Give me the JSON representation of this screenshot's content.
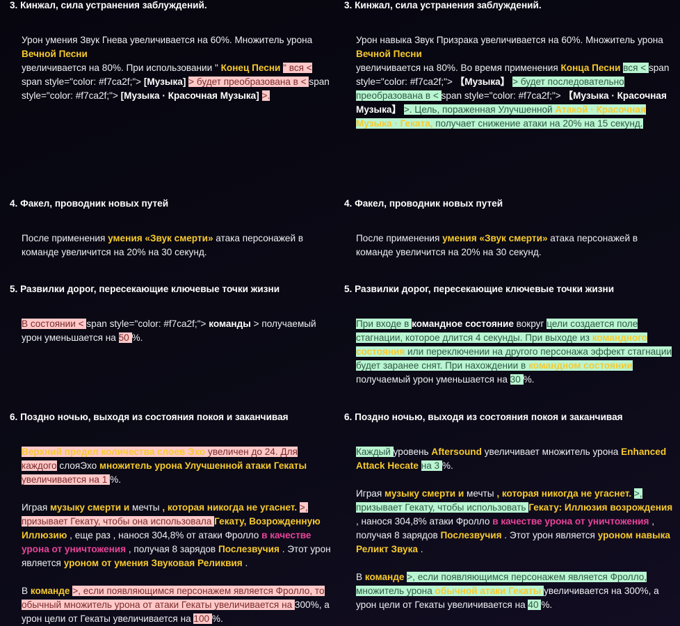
{
  "colors": {
    "accent_gold": "#f7ca2f",
    "accent_magenta": "#e8449a",
    "deleted_bg": "#ffc9c9",
    "inserted_bg": "#baf5d2",
    "background": "#0b0a15"
  },
  "columns": [
    {
      "side": "original",
      "sections": [
        {
          "title": "3. Кинжал, сила устранения заблуждений.",
          "paragraphs": [
            [
              {
                "c": "n",
                "t": "Урон умения Звук Гнева увеличивается на 60%. Множитель урона "
              },
              {
                "br": true
              },
              {
                "c": "g",
                "t": "Вечной Песни"
              },
              {
                "br": true
              },
              {
                "c": "n",
                "t": " увеличивается на 80%. При использовании \" "
              },
              {
                "c": "g",
                "t": "Конец Песни "
              },
              {
                "c": "del",
                "t": " \" вся < "
              },
              {
                "c": "n",
                "t": "span style=\"color: #f7ca2f;\"> "
              },
              {
                "c": "b",
                "t": "[Музыка] "
              },
              {
                "c": "del",
                "t": " > будет преобразована в < "
              },
              {
                "c": "n",
                "t": "span style=\"color: #f7ca2f;\"> "
              },
              {
                "c": "b",
                "t": "[Музыка · Красочная Музыка] "
              },
              {
                "c": "del",
                "t": " >."
              }
            ]
          ]
        },
        {
          "title": "4. Факел, проводник новых путей",
          "paragraphs": [
            [
              {
                "c": "n",
                "t": "После применения "
              },
              {
                "c": "g",
                "t": "умения «Звук смерти»"
              },
              {
                "c": "n",
                "t": " атака персонажей в команде увеличится на 20% на 30 секунд."
              }
            ]
          ]
        },
        {
          "title": "5. Развилки дорог, пересекающие ключевые точки жизни",
          "paragraphs": [
            [
              {
                "c": "del",
                "t": "В состоянии <  "
              },
              {
                "c": "n",
                "t": "span style=\"color: #f7ca2f;\"> "
              },
              {
                "c": "b",
                "t": "команды "
              },
              {
                "c": "n",
                "t": " > получаемый урон уменьшается на "
              },
              {
                "c": "del",
                "t": " 50 "
              },
              {
                "c": "n",
                "t": "%."
              }
            ]
          ]
        },
        {
          "title": "6. Поздно ночью, выходя из состояния покоя и заканчивая",
          "paragraphs": [
            [
              {
                "c": "delg",
                "t": "Верхний предел количества слоев Эхо"
              },
              {
                "c": "del",
                "t": " увеличен до 24. Для каждого"
              },
              {
                "c": "n",
                "t": " слояЭхо "
              },
              {
                "c": "g",
                "t": "множитель урона Улучшенной атаки Гекаты "
              },
              {
                "c": "del",
                "t": " увеличивается на 1 "
              },
              {
                "c": "n",
                "t": "%."
              }
            ],
            [
              {
                "c": "n",
                "t": "Играя "
              },
              {
                "c": "g",
                "t": "музыку смерти и"
              },
              {
                "c": "n",
                "t": " мечты "
              },
              {
                "c": "g",
                "t": ", которая никогда не угаснет. "
              },
              {
                "c": "del",
                "t": ">, призывает Гекату, чтобы она использовала "
              },
              {
                "c": "g",
                "t": " Гекату, Возрожденную Иллюзию"
              },
              {
                "c": "n",
                "t": " , еще раз , нанося 304,8% от атаки Фролло "
              },
              {
                "c": "m",
                "t": "в качестве урона от уничтожения"
              },
              {
                "c": "n",
                "t": " , получая 8 зарядов "
              },
              {
                "c": "g",
                "t": "Послезвучия"
              },
              {
                "c": "n",
                "t": " . Этот урон является "
              },
              {
                "c": "g",
                "t": "уроном от умения Звуковая Реликвия"
              },
              {
                "c": "n",
                "t": " ."
              }
            ],
            [
              {
                "c": "n",
                "t": "В "
              },
              {
                "c": "g",
                "t": "команде "
              },
              {
                "c": "del",
                "t": ">, если появляющимся персонажем является Фролло, то обычный множитель урона от атаки Гекаты увеличивается на "
              },
              {
                "c": "n",
                "t": "300%, а урон цели от Гекаты увеличивается на "
              },
              {
                "c": "del",
                "t": " 100 "
              },
              {
                "c": "n",
                "t": "%."
              }
            ]
          ]
        }
      ]
    },
    {
      "side": "revised",
      "sections": [
        {
          "title": "3. Кинжал, сила устранения заблуждений.",
          "paragraphs": [
            [
              {
                "c": "n",
                "t": "Урон навыка Звук Призрака увеличивается на 60%. Множитель урона"
              },
              {
                "br": true
              },
              {
                "c": "g",
                "t": "Вечной Песни"
              },
              {
                "br": true
              },
              {
                "c": "n",
                "t": " увеличивается на 80%. Во время применения "
              },
              {
                "c": "g",
                "t": "Конца Песни "
              },
              {
                "c": "ins",
                "t": " вся < "
              },
              {
                "c": "n",
                "t": "span style=\"color: #f7ca2f;\"> "
              },
              {
                "c": "b",
                "t": " 【Музыка】 "
              },
              {
                "c": "ins",
                "t": " > будет  последовательно преобразована в < "
              },
              {
                "c": "n",
                "t": "span style=\"color: #f7ca2f;\"> "
              },
              {
                "c": "b",
                "t": " 【Музыка · Красочная Музыка】 "
              },
              {
                "c": "ins",
                "t": " >. Цель, пораженная Улучшенной "
              },
              {
                "c": "insg",
                "t": "Атакой · Красочная Музыка · Геката,"
              },
              {
                "c": "ins",
                "t": " получает снижение атаки на 20% на 15 секунд."
              },
              {
                "br": true
              },
              {
                "c": "ins",
                "t": " "
              }
            ]
          ]
        },
        {
          "title": "4. Факел, проводник новых путей",
          "paragraphs": [
            [
              {
                "c": "n",
                "t": "После применения "
              },
              {
                "c": "g",
                "t": "умения «Звук смерти»"
              },
              {
                "c": "n",
                "t": " атака персонажей в команде увеличится на 20% на 30 секунд."
              }
            ]
          ]
        },
        {
          "title": "5. Развилки дорог, пересекающие ключевые точки жизни",
          "paragraphs": [
            [
              {
                "c": "ins",
                "t": "При входе в "
              },
              {
                "c": "b",
                "t": " командное состояние"
              },
              {
                "c": "n",
                "t": " вокруг "
              },
              {
                "c": "ins",
                "t": " цели создается поле стагнации, которое длится 4 секунды. При выходе из "
              },
              {
                "c": "insg",
                "t": "командного состояния"
              },
              {
                "c": "ins",
                "t": " или переключении на другого персонажа эффект стагнации будет заранее снят. При нахождении в "
              },
              {
                "c": "insg",
                "t": "командном состоянии "
              },
              {
                "c": "n",
                "t": " получаемый урон уменьшается на "
              },
              {
                "c": "ins",
                "t": " 30 "
              },
              {
                "c": "n",
                "t": "%."
              }
            ]
          ]
        },
        {
          "title": "6. Поздно ночью, выходя из состояния покоя и заканчивая",
          "paragraphs": [
            [
              {
                "c": "ins",
                "t": "Каждый "
              },
              {
                "c": "n",
                "t": " уровень "
              },
              {
                "c": "g",
                "t": "Aftersound"
              },
              {
                "c": "n",
                "t": " увеличивает множитель урона "
              },
              {
                "c": "g",
                "t": "Enhanced Attack Hecate "
              },
              {
                "c": "ins",
                "t": " на 3 "
              },
              {
                "c": "n",
                "t": "%."
              }
            ],
            [
              {
                "c": "n",
                "t": "Играя "
              },
              {
                "c": "g",
                "t": "музыку смерти и"
              },
              {
                "c": "n",
                "t": " мечты "
              },
              {
                "c": "g",
                "t": ", которая никогда не угаснет. "
              },
              {
                "c": "ins",
                "t": ">, призывает Гекату, чтобы использовать "
              },
              {
                "c": "g",
                "t": " Гекату: Иллюзия возрождения"
              },
              {
                "c": "n",
                "t": " , нанося 304,8% атаки Фролло "
              },
              {
                "c": "m",
                "t": "в качестве урона от уничтожения"
              },
              {
                "c": "n",
                "t": " , получая 8 зарядов "
              },
              {
                "c": "g",
                "t": "Послезвучия"
              },
              {
                "c": "n",
                "t": " . Этот урон является "
              },
              {
                "c": "g",
                "t": "уроном навыка Реликт Звука"
              },
              {
                "c": "n",
                "t": " ."
              }
            ],
            [
              {
                "c": "n",
                "t": "В "
              },
              {
                "c": "g",
                "t": "команде "
              },
              {
                "c": "ins",
                "t": ">, если появляющимся персонажем является Фролло, множитель урона "
              },
              {
                "c": "insg",
                "t": "обычной атаки Гекаты "
              },
              {
                "c": "n",
                "t": " увеличивается на 300%, а урон цели от Гекаты увеличивается на "
              },
              {
                "c": "ins",
                "t": " 40 "
              },
              {
                "c": "n",
                "t": "%."
              }
            ]
          ]
        }
      ]
    }
  ]
}
